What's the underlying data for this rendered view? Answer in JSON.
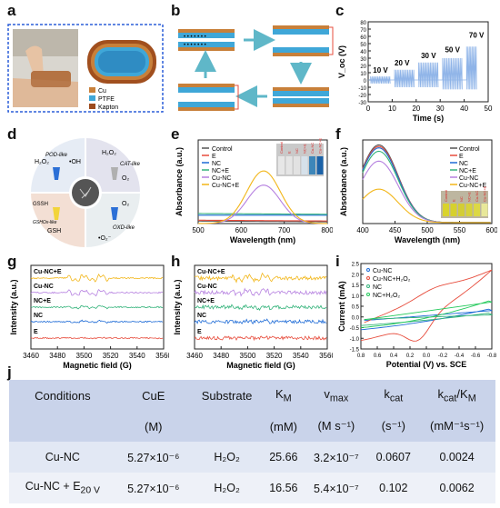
{
  "panel_labels": {
    "a": "a",
    "b": "b",
    "c": "c",
    "d": "d",
    "e": "e",
    "f": "f",
    "g": "g",
    "h": "h",
    "i": "i",
    "j": "j"
  },
  "panel_a": {
    "legend": [
      "Cu",
      "PTFE",
      "Kapton"
    ],
    "colors": {
      "cu": "#c8803a",
      "ptfe": "#3fa7d8",
      "kapton": "#9c4a1c"
    }
  },
  "chart_data": [
    {
      "id": "c",
      "type": "line",
      "xlabel": "Time (s)",
      "ylabel": "V_oc (V)",
      "xlim": [
        0,
        50
      ],
      "ylim": [
        -30,
        80
      ],
      "xticks": [
        "0",
        "10",
        "20",
        "30",
        "40",
        "50"
      ],
      "yticks": [
        "-30",
        "-20",
        "-10",
        "0",
        "10",
        "20",
        "30",
        "40",
        "50",
        "60",
        "70",
        "80"
      ],
      "annotations": [
        "10 V",
        "20 V",
        "30 V",
        "50 V",
        "70 V"
      ],
      "segments": [
        {
          "x": [
            1,
            9
          ],
          "hi": 5,
          "lo": -5
        },
        {
          "x": [
            11,
            19
          ],
          "hi": 14,
          "lo": -10
        },
        {
          "x": [
            21,
            29
          ],
          "hi": 24,
          "lo": -10
        },
        {
          "x": [
            31,
            39
          ],
          "hi": 30,
          "lo": -13
        },
        {
          "x": [
            41,
            45
          ],
          "hi": 46,
          "lo": -13
        }
      ],
      "color": "#8fb4e8"
    },
    {
      "id": "e",
      "type": "line",
      "xlabel": "Wavelength (nm)",
      "ylabel": "Absorbance (a.u.)",
      "xlim": [
        500,
        800
      ],
      "xticks": [
        "500",
        "600",
        "700",
        "800"
      ],
      "series": [
        {
          "name": "Control",
          "color": "#555555"
        },
        {
          "name": "E",
          "color": "#e74c3c"
        },
        {
          "name": "NC",
          "color": "#1e6bd6"
        },
        {
          "name": "NC+E",
          "color": "#33b37a"
        },
        {
          "name": "Cu-NC",
          "color": "#b681e0"
        },
        {
          "name": "Cu-NC+E",
          "color": "#f2b619"
        }
      ],
      "inset_labels": [
        "Control",
        "E",
        "NC",
        "NC+E",
        "Cu-NC",
        "Cu-NC+E"
      ]
    },
    {
      "id": "f",
      "type": "line",
      "xlabel": "Wavelength (nm)",
      "ylabel": "Absorbance (a.u.)",
      "xlim": [
        400,
        600
      ],
      "xticks": [
        "400",
        "450",
        "500",
        "550",
        "600"
      ],
      "series": [
        {
          "name": "Control",
          "color": "#555555"
        },
        {
          "name": "E",
          "color": "#e74c3c"
        },
        {
          "name": "NC",
          "color": "#1e6bd6"
        },
        {
          "name": "NC+E",
          "color": "#33b37a"
        },
        {
          "name": "Cu-NC",
          "color": "#b681e0"
        },
        {
          "name": "Cu-NC+E",
          "color": "#f2b619"
        }
      ],
      "inset_labels": [
        "Control",
        "E",
        "NC",
        "NC+E",
        "Cu-NC",
        "Cu-NC+E"
      ]
    },
    {
      "id": "g",
      "type": "line",
      "xlabel": "Magnetic field (G)",
      "ylabel": "Intensity (a.u.)",
      "xlim": [
        3460,
        3560
      ],
      "xticks": [
        "3460",
        "3480",
        "3500",
        "3520",
        "3540",
        "3560"
      ],
      "series": [
        {
          "name": "Cu-NC+E",
          "color": "#f2b619"
        },
        {
          "name": "Cu-NC",
          "color": "#b681e0"
        },
        {
          "name": "NC+E",
          "color": "#33b37a"
        },
        {
          "name": "NC",
          "color": "#1e6bd6"
        },
        {
          "name": "E",
          "color": "#e74c3c"
        }
      ]
    },
    {
      "id": "h",
      "type": "line",
      "xlabel": "Magnetic field (G)",
      "ylabel": "Intensity (a.u.)",
      "xlim": [
        3460,
        3560
      ],
      "xticks": [
        "3460",
        "3480",
        "3500",
        "3520",
        "3540",
        "3560"
      ],
      "series": [
        {
          "name": "Cu-NC+E",
          "color": "#f2b619"
        },
        {
          "name": "Cu-NC",
          "color": "#b681e0"
        },
        {
          "name": "NC+E",
          "color": "#33b37a"
        },
        {
          "name": "NC",
          "color": "#1e6bd6"
        },
        {
          "name": "E",
          "color": "#e74c3c"
        }
      ]
    },
    {
      "id": "i",
      "type": "line",
      "xlabel": "Potential (V) vs. SCE",
      "ylabel": "Current (mA)",
      "xlim": [
        0.8,
        -0.8
      ],
      "ylim": [
        -1.5,
        2.5
      ],
      "xticks": [
        "0.8",
        "0.6",
        "0.4",
        "0.2",
        "0.0",
        "-0.2",
        "-0.4",
        "-0.6",
        "-0.8"
      ],
      "yticks": [
        "-1.5",
        "-1.0",
        "-0.5",
        "0.0",
        "0.5",
        "1.0",
        "1.5",
        "2.0",
        "2.5"
      ],
      "series": [
        {
          "name": "Cu-NC",
          "color": "#1e6bd6"
        },
        {
          "name": "Cu-NC+H₂O₂",
          "color": "#e74c3c"
        },
        {
          "name": "NC",
          "color": "#33b37a"
        },
        {
          "name": "NC+H₂O₂",
          "color": "#22c95a"
        }
      ]
    }
  ],
  "panel_d": {
    "labels": [
      "H₂O₂",
      "POD-like",
      "•OH",
      "H₂O₂",
      "CAT-like",
      "O₂",
      "GSH",
      "GSHOx-like",
      "GSSH",
      "O₂",
      "OXD-like",
      "•O₂⁻"
    ]
  },
  "table": {
    "headers": [
      "Conditions",
      "CuE",
      "Substrate",
      "K",
      "v",
      "k",
      "k"
    ],
    "header_subs": [
      "",
      "",
      "",
      "M",
      "max",
      "cat",
      "cat"
    ],
    "header_tail": [
      "",
      "",
      "",
      "",
      "",
      "",
      "/K"
    ],
    "header_tail_sub": [
      "",
      "",
      "",
      "",
      "",
      "",
      "M"
    ],
    "units": [
      "",
      "(M)",
      "",
      "(mM)",
      "(M s⁻¹)",
      "(s⁻¹)",
      "(mM⁻¹s⁻¹)"
    ],
    "rows": [
      [
        "Cu-NC",
        "5.27×10⁻⁶",
        "H₂O₂",
        "25.66",
        "3.2×10⁻⁷",
        "0.0607",
        "0.0024"
      ],
      [
        "Cu-NC + E",
        "5.27×10⁻⁶",
        "H₂O₂",
        "16.56",
        "5.4×10⁻⁷",
        "0.102",
        "0.0062"
      ]
    ],
    "row2_sub": "20 V"
  }
}
